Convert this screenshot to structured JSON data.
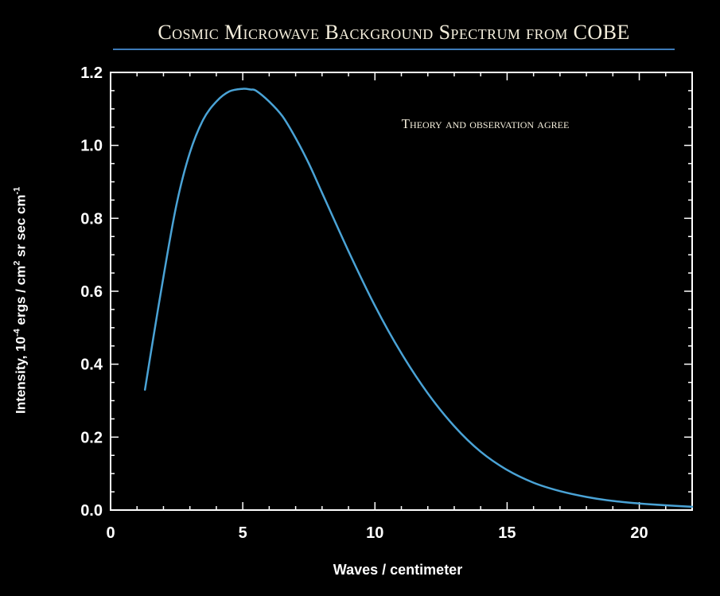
{
  "chart_data": {
    "type": "line",
    "title": "Cosmic Microwave Background Spectrum from COBE",
    "annotation": "Theory and observation agree",
    "xlabel": "Waves / centimeter",
    "ylabel": {
      "prefix": "Intensity, 10",
      "exp1": "-4",
      "mid": " ergs / cm",
      "exp2": "2",
      "rest": " sr sec cm",
      "exp3": "-1"
    },
    "xlim": [
      0,
      22
    ],
    "ylim": [
      0,
      1.2
    ],
    "x_ticks": [
      "0",
      "5",
      "10",
      "15",
      "20"
    ],
    "y_ticks": [
      "0.0",
      "0.2",
      "0.4",
      "0.6",
      "0.8",
      "1.0",
      "1.2"
    ],
    "grid": false,
    "colors": {
      "line": "#4aa3d6",
      "axes": "#ffffff",
      "title_rule": "#3d7ab8"
    },
    "series": [
      {
        "x": [
          1.3,
          1.5,
          2,
          2.5,
          3,
          3.5,
          4,
          4.5,
          5,
          5.3,
          5.5,
          6,
          6.5,
          7,
          7.5,
          8,
          9,
          10,
          11,
          12,
          13,
          14,
          15,
          16,
          17,
          18,
          19,
          20,
          21,
          22
        ],
        "values": [
          0.33,
          0.42,
          0.64,
          0.84,
          0.98,
          1.07,
          1.12,
          1.148,
          1.155,
          1.153,
          1.15,
          1.12,
          1.08,
          1.02,
          0.95,
          0.87,
          0.71,
          0.56,
          0.43,
          0.32,
          0.23,
          0.16,
          0.11,
          0.075,
          0.052,
          0.036,
          0.025,
          0.018,
          0.013,
          0.009
        ]
      }
    ]
  }
}
